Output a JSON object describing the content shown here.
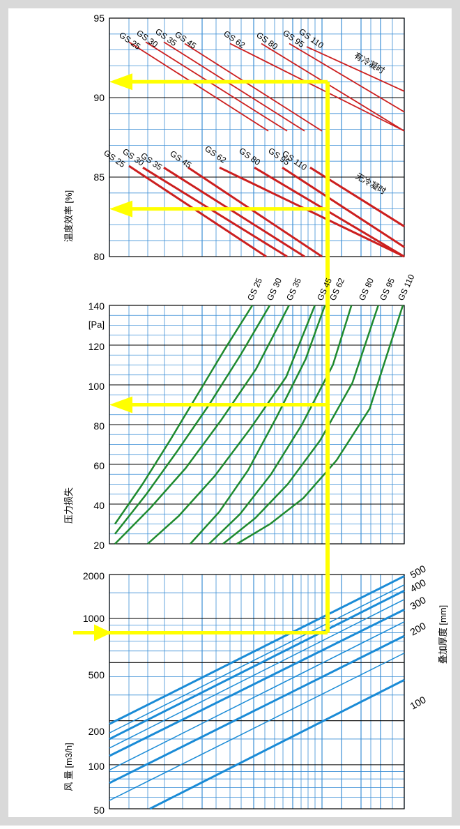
{
  "colors": {
    "background": "#d9d9d9",
    "panel": "#ffffff",
    "grid_blue": "#3d8fd6",
    "grid_black": "#000000",
    "efficiency_line": "#cc1f1f",
    "pressure_line": "#1f8a2e",
    "airflow_line": "#1a8bd6",
    "guide": "#ffff00"
  },
  "chart_data": [
    {
      "type": "line",
      "ylabel": "温度效率 [%]",
      "ylim": [
        80,
        95
      ],
      "y_ticks": [
        "80",
        "85",
        "90",
        "95"
      ],
      "grid": true,
      "series_labels_dry": [
        "GS 25",
        "GS 30",
        "GS 35",
        "GS 45",
        "GS 62",
        "GS 80",
        "GS 95",
        "GS 110"
      ],
      "annotation_condensing": "有冷凝时",
      "annotation_dry": "无冷凝时",
      "series_condensing": [
        {
          "name": "GS 25",
          "y_start": 93.5,
          "y_end": 87.9
        },
        {
          "name": "GS 30",
          "y_start": 93.5,
          "y_end": 87.9
        },
        {
          "name": "GS 35",
          "y_start": 93.5,
          "y_end": 87.9
        },
        {
          "name": "GS 45",
          "y_start": 93.4,
          "y_end": 87.9
        },
        {
          "name": "GS 62",
          "y_start": 93.4,
          "y_end": 87.9
        },
        {
          "name": "GS 80",
          "y_start": 93.4,
          "y_end": 87.9
        },
        {
          "name": "GS 95",
          "y_start": 93.4,
          "y_end": 89.1
        },
        {
          "name": "GS 110",
          "y_start": 93.2,
          "y_end": 90.4
        }
      ],
      "series_dry": [
        {
          "name": "GS 25",
          "y_start": 85.7,
          "y_end": 80.0
        },
        {
          "name": "GS 30",
          "y_start": 85.6,
          "y_end": 80.0
        },
        {
          "name": "GS 35",
          "y_start": 85.6,
          "y_end": 80.0
        },
        {
          "name": "GS 45",
          "y_start": 85.6,
          "y_end": 80.0
        },
        {
          "name": "GS 62",
          "y_start": 85.6,
          "y_end": 80.0
        },
        {
          "name": "GS 80",
          "y_start": 85.6,
          "y_end": 80.0
        },
        {
          "name": "GS 95",
          "y_start": 85.6,
          "y_end": 80.6
        },
        {
          "name": "GS 110",
          "y_start": 85.6,
          "y_end": 81.9
        }
      ],
      "example_reading": {
        "condensing": 91,
        "dry": 83
      }
    },
    {
      "type": "line",
      "ylabel": "压力损失",
      "yunit": "[Pa]",
      "ylim": [
        20,
        140
      ],
      "y_ticks": [
        "20",
        "40",
        "60",
        "80",
        "100",
        "120",
        "140"
      ],
      "grid": true,
      "series_labels": [
        "GS 25",
        "GS 30",
        "GS 35",
        "GS 45",
        "GS 62",
        "GS 80",
        "GS 95",
        "GS 110"
      ],
      "series": [
        {
          "name": "GS 25",
          "points": [
            [
              0.0,
              30
            ],
            [
              0.15,
              50
            ],
            [
              0.3,
              72
            ],
            [
              0.45,
              95
            ],
            [
              0.6,
              118
            ],
            [
              0.75,
              140
            ]
          ]
        },
        {
          "name": "GS 30",
          "points": [
            [
              0.0,
              25
            ],
            [
              0.15,
              45
            ],
            [
              0.3,
              67
            ],
            [
              0.45,
              90
            ],
            [
              0.6,
              115
            ],
            [
              0.74,
              140
            ]
          ]
        },
        {
          "name": "GS 35",
          "points": [
            [
              0.0,
              20
            ],
            [
              0.15,
              38
            ],
            [
              0.3,
              58
            ],
            [
              0.45,
              82
            ],
            [
              0.6,
              108
            ],
            [
              0.74,
              140
            ]
          ]
        },
        {
          "name": "GS 45",
          "points": [
            [
              0.02,
              20
            ],
            [
              0.15,
              34
            ],
            [
              0.3,
              54
            ],
            [
              0.45,
              78
            ],
            [
              0.6,
              104
            ],
            [
              0.72,
              140
            ]
          ]
        },
        {
          "name": "GS 62",
          "points": [
            [
              0.0,
              20
            ],
            [
              0.15,
              36
            ],
            [
              0.3,
              57
            ],
            [
              0.45,
              84
            ],
            [
              0.6,
              113
            ],
            [
              0.7,
              140
            ]
          ]
        },
        {
          "name": "GS 80",
          "points": [
            [
              0.0,
              20
            ],
            [
              0.15,
              35
            ],
            [
              0.3,
              55
            ],
            [
              0.45,
              80
            ],
            [
              0.6,
              110
            ],
            [
              0.69,
              140
            ]
          ]
        },
        {
          "name": "GS 95",
          "points": [
            [
              0.0,
              20
            ],
            [
              0.15,
              33
            ],
            [
              0.3,
              50
            ],
            [
              0.45,
              72
            ],
            [
              0.6,
              101
            ],
            [
              0.72,
              140
            ]
          ]
        },
        {
          "name": "GS 110",
          "points": [
            [
              0.0,
              20
            ],
            [
              0.15,
              30
            ],
            [
              0.3,
              43
            ],
            [
              0.45,
              62
            ],
            [
              0.6,
              88
            ],
            [
              0.75,
              140
            ]
          ]
        }
      ],
      "example_reading": 90
    },
    {
      "type": "line",
      "ylabel": "风 量 [m3/h]",
      "ylim": [
        50,
        2000
      ],
      "log_scale": true,
      "y_ticks": [
        "50",
        "100",
        "200",
        "500",
        "1000",
        "2000"
      ],
      "grid": true,
      "right_label": "叠加厚度 [mm]",
      "thickness_labels": [
        "100",
        "200",
        "300",
        "400",
        "500"
      ],
      "series": [
        {
          "name": "500",
          "y_start": 190,
          "y_end": 1950
        },
        {
          "name": "",
          "y_start": 165,
          "y_end": 1700
        },
        {
          "name": "400",
          "y_start": 150,
          "y_end": 1550
        },
        {
          "name": "",
          "y_start": 130,
          "y_end": 1350
        },
        {
          "name": "300",
          "y_start": 115,
          "y_end": 1150
        },
        {
          "name": "",
          "y_start": 92,
          "y_end": 950
        },
        {
          "name": "200",
          "y_start": 75,
          "y_end": 760
        },
        {
          "name": "",
          "y_start": 57,
          "y_end": 580
        },
        {
          "name": "100",
          "y_start": 50,
          "y_end": 380
        }
      ],
      "example_reading": 800
    }
  ]
}
